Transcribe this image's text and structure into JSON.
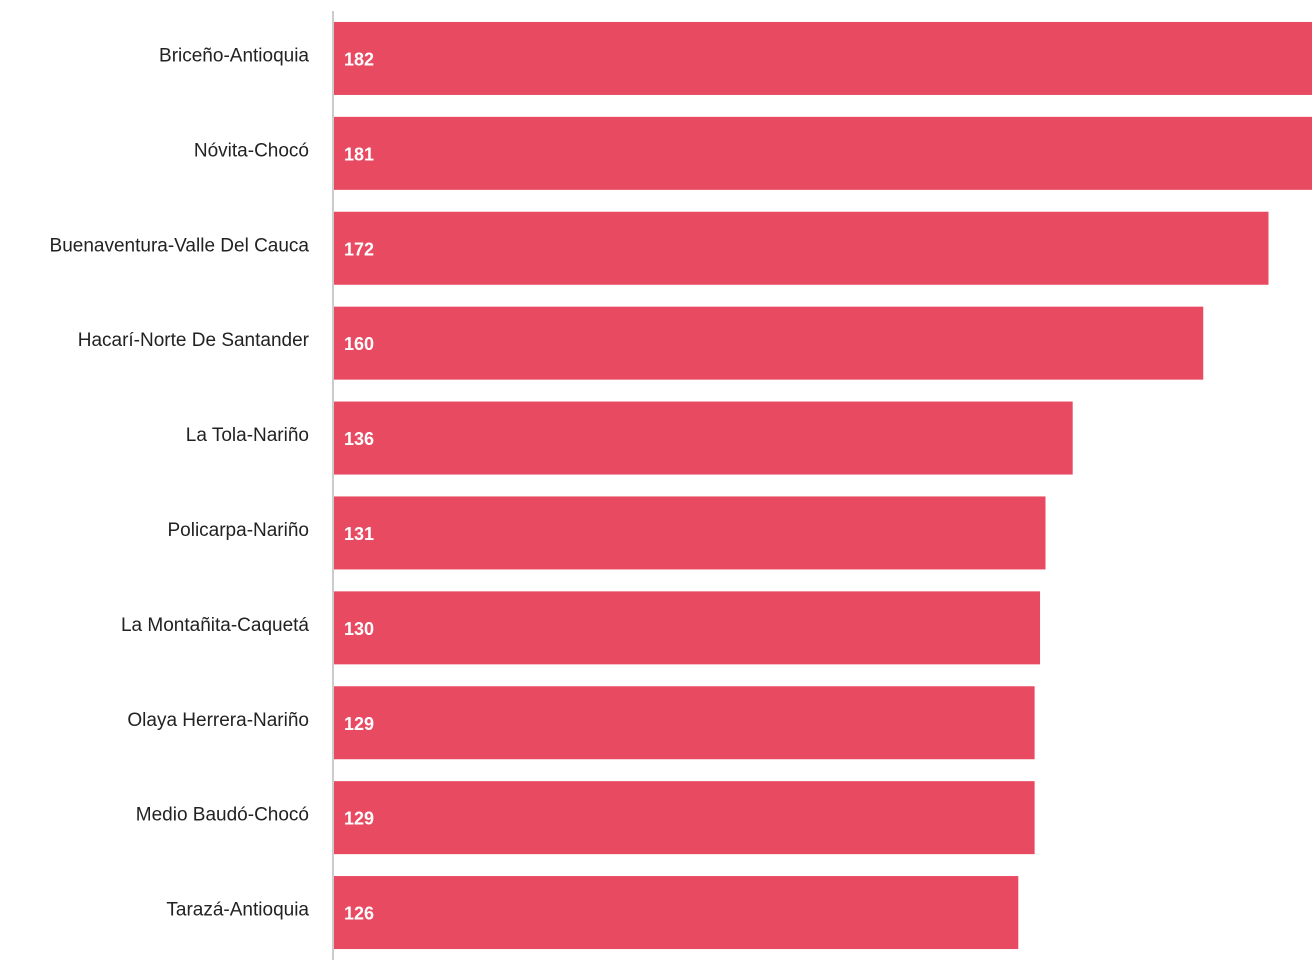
{
  "chart_data": {
    "type": "bar",
    "orientation": "horizontal",
    "categories": [
      "Briceño-Antioquia",
      "Nóvita-Chocó",
      "Buenaventura-Valle Del Cauca",
      "Hacarí-Norte De Santander",
      "La Tola-Nariño",
      "Policarpa-Nariño",
      "La Montañita-Caquetá",
      "Olaya Herrera-Nariño",
      "Medio Baudó-Chocó",
      "Tarazá-Antioquia"
    ],
    "values": [
      182,
      181,
      172,
      160,
      136,
      131,
      130,
      129,
      129,
      126
    ],
    "value_labels": [
      "182",
      "181",
      "172",
      "160",
      "136",
      "131",
      "130",
      "129",
      "129",
      "126"
    ],
    "title": "",
    "xlabel": "",
    "ylabel": "",
    "xlim": [
      0,
      180
    ],
    "grid": false,
    "legend": false,
    "colors": {
      "bar": "#E84A62",
      "axis": "#cccccc",
      "category_text": "#222222",
      "value_text": "#ffffff"
    }
  }
}
